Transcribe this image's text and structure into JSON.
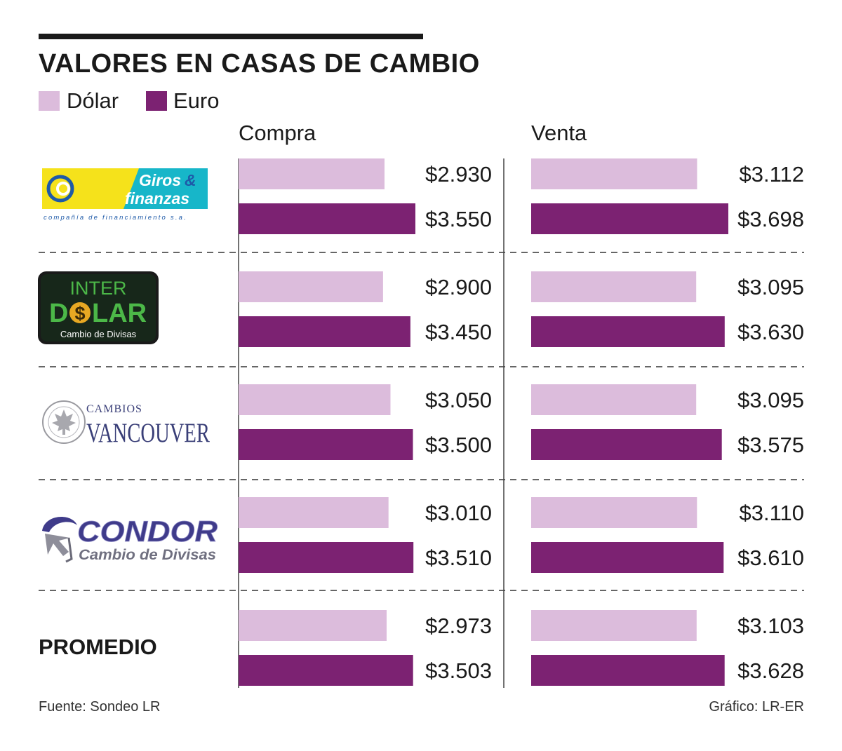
{
  "title": "VALORES EN CASAS DE CAMBIO",
  "legend": [
    {
      "label": "Dólar",
      "color": "#dcbcdc"
    },
    {
      "label": "Euro",
      "color": "#7c2272"
    }
  ],
  "columns": [
    "Compra",
    "Venta"
  ],
  "logos": {
    "giros": {
      "word1": "Giros",
      "amp": "&",
      "word2": "finanzas",
      "tagline": "compañía de financiamiento s.a."
    },
    "interdolar": {
      "line1": "INTER",
      "line2a": "D",
      "line2b": "$",
      "line2c": "LAR",
      "sub": "Cambio de Divisas"
    },
    "vancouver": {
      "top": "CAMBIOS",
      "main": "VANCOUVER"
    },
    "condor": {
      "main": "CONDOR",
      "sub": "Cambio de Divisas"
    }
  },
  "promedio_label": "PROMEDIO",
  "source": "Fuente: Sondeo LR",
  "credit": "Gráfico: LR-ER",
  "chart_data": [
    {
      "type": "bar",
      "title": "Compra",
      "categories": [
        "Giros & Finanzas",
        "Interdólar",
        "Cambios Vancouver",
        "Condor",
        "PROMEDIO"
      ],
      "series": [
        {
          "name": "Dólar",
          "values": [
            2930,
            2900,
            3050,
            3010,
            2973
          ],
          "labels": [
            "$2.930",
            "$2.900",
            "$3.050",
            "$3.010",
            "$2.973"
          ]
        },
        {
          "name": "Euro",
          "values": [
            3550,
            3450,
            3500,
            3510,
            3503
          ],
          "labels": [
            "$3.550",
            "$3.450",
            "$3.500",
            "$3.510",
            "$3.503"
          ]
        }
      ]
    },
    {
      "type": "bar",
      "title": "Venta",
      "categories": [
        "Giros & Finanzas",
        "Interdólar",
        "Cambios Vancouver",
        "Condor",
        "PROMEDIO"
      ],
      "series": [
        {
          "name": "Dólar",
          "values": [
            3112,
            3095,
            3095,
            3110,
            3103
          ],
          "labels": [
            "$3.112",
            "$3.095",
            "$3.095",
            "$3.110",
            "$3.103"
          ]
        },
        {
          "name": "Euro",
          "values": [
            3698,
            3630,
            3575,
            3610,
            3628
          ],
          "labels": [
            "$3.698",
            "$3.630",
            "$3.575",
            "$3.610",
            "$3.628"
          ]
        }
      ]
    }
  ]
}
